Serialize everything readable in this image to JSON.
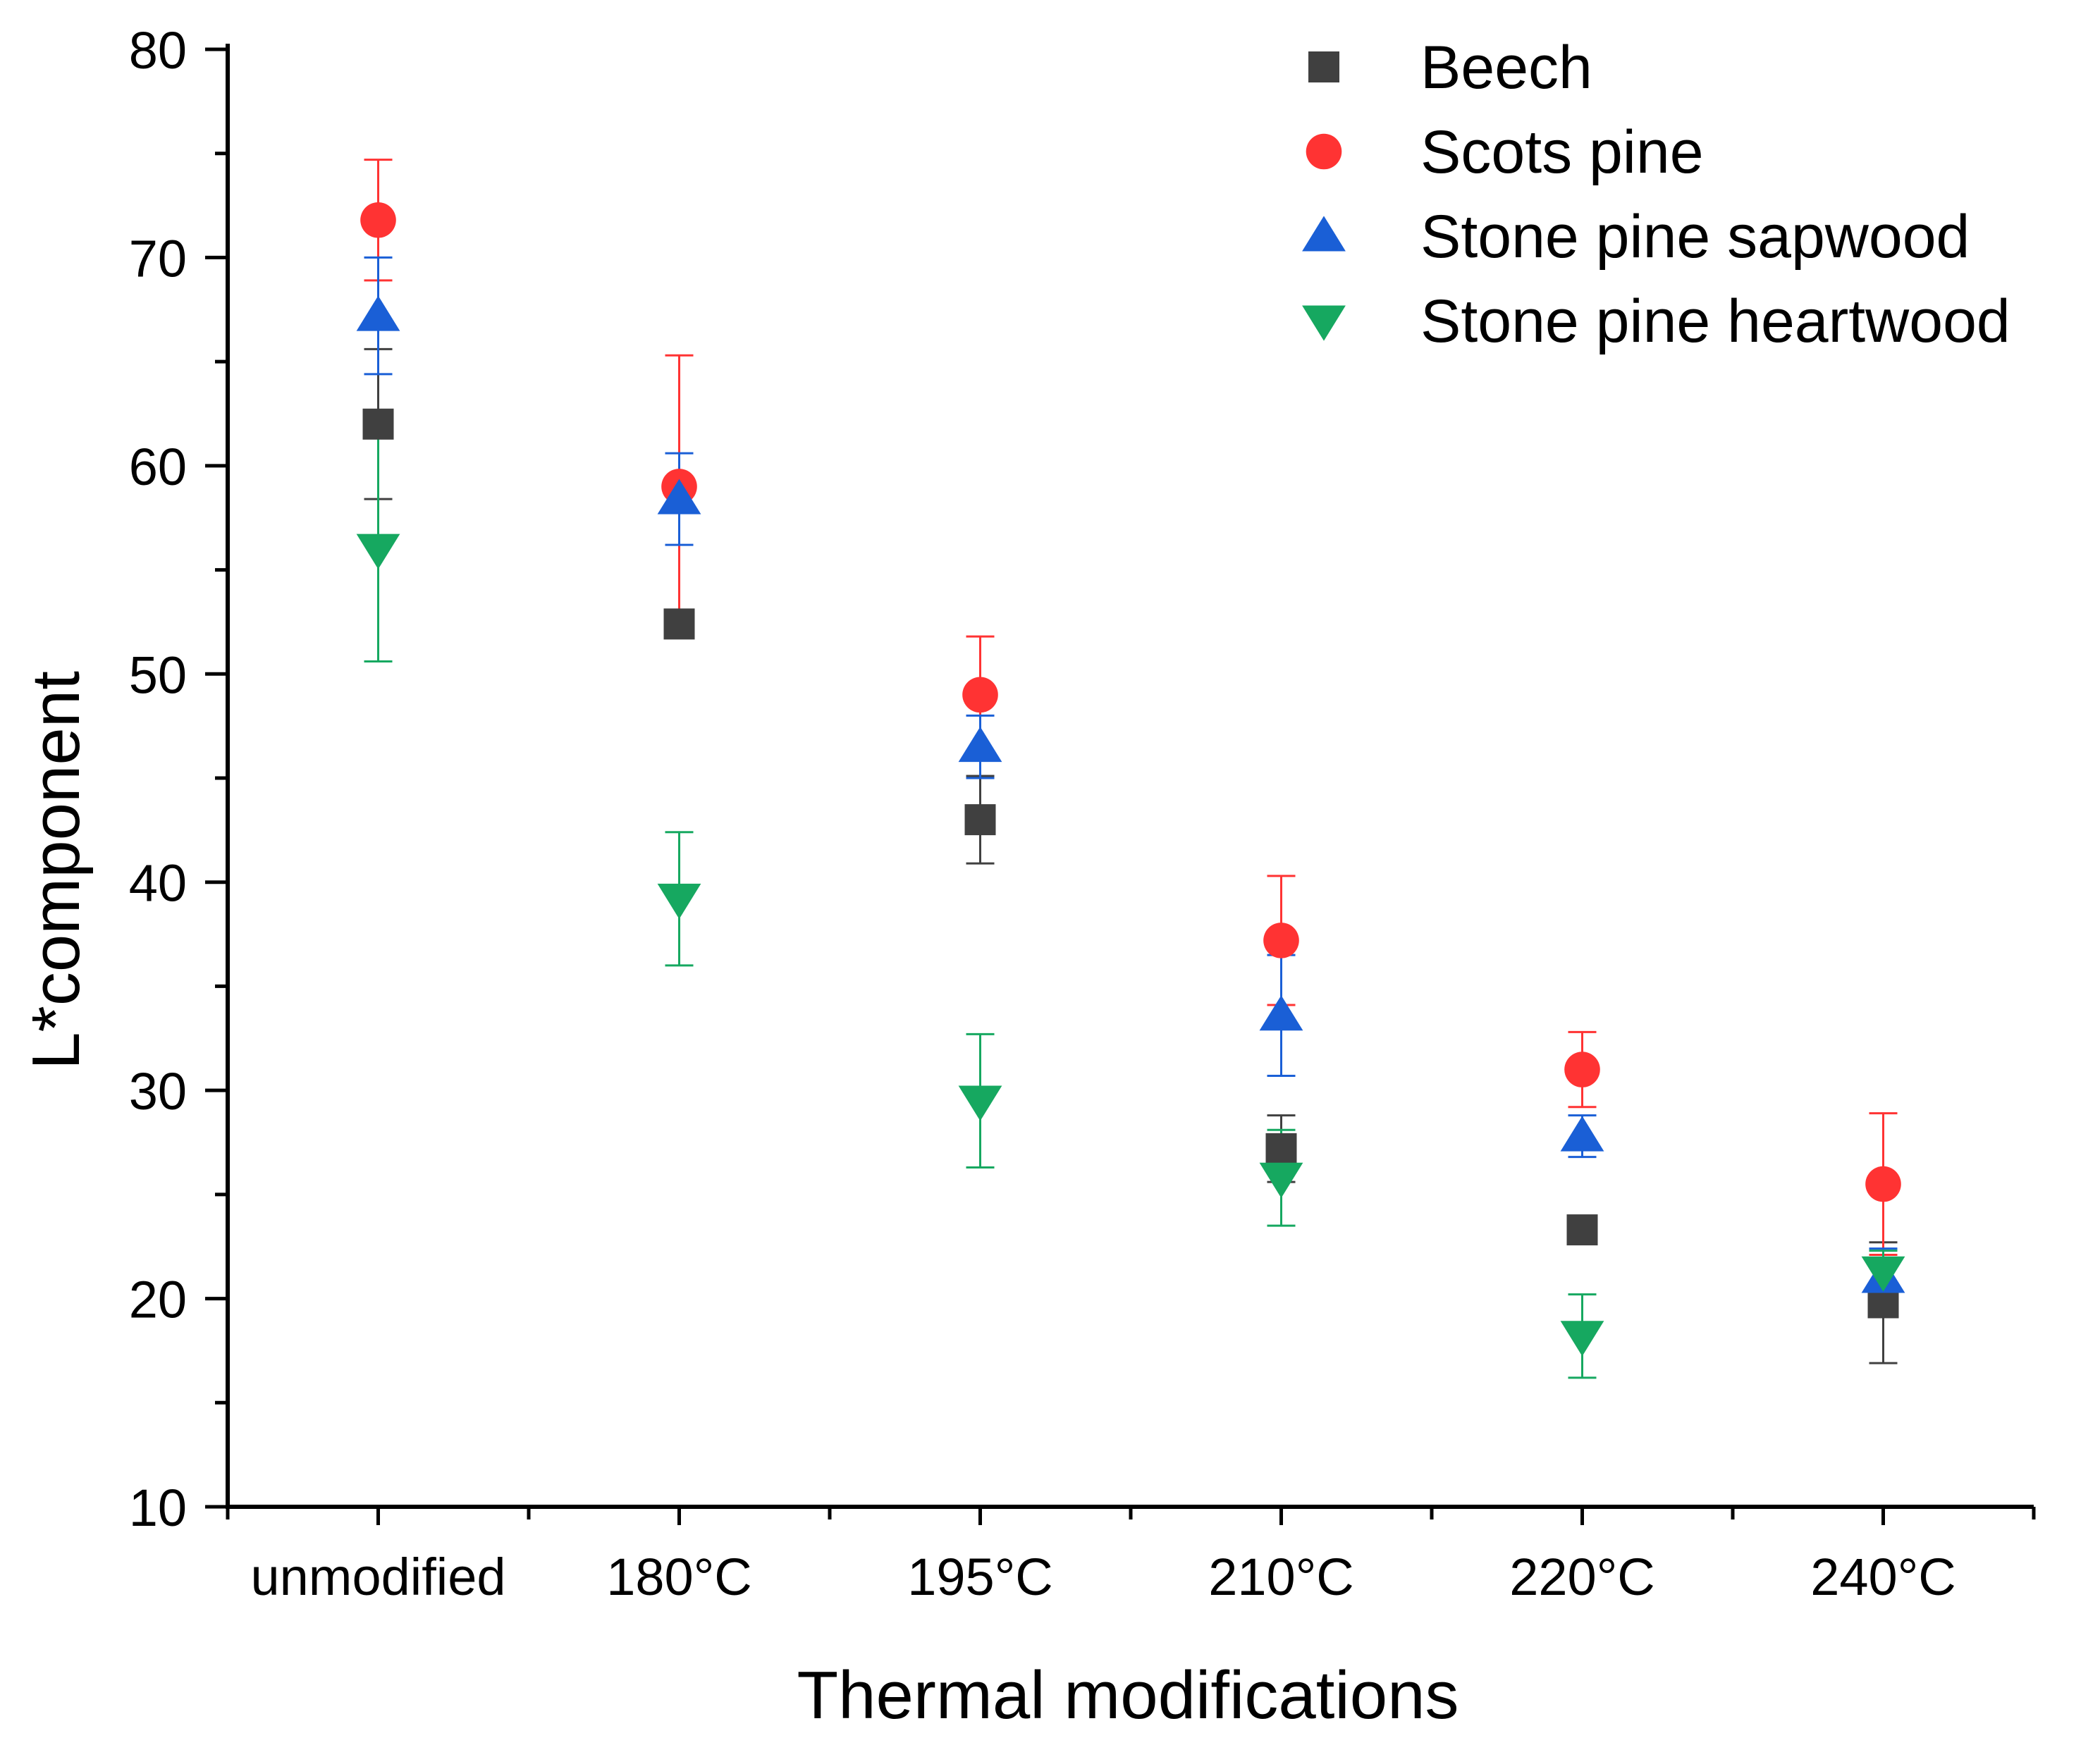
{
  "chart_data": {
    "type": "scatter",
    "title": "",
    "xlabel": "Thermal modifications",
    "ylabel": "L*component",
    "categories": [
      "unmodified",
      "180°C",
      "195°C",
      "210°C",
      "220°C",
      "240°C"
    ],
    "ylim": [
      10,
      80
    ],
    "yticks": [
      10,
      20,
      30,
      40,
      50,
      60,
      70,
      80
    ],
    "grid": false,
    "legend_position": "top-right",
    "series": [
      {
        "name": "Beech",
        "marker": "square",
        "color": "#404040",
        "values": [
          62.0,
          52.4,
          43.0,
          27.2,
          23.3,
          19.8
        ],
        "errors": [
          3.6,
          0.5,
          2.1,
          1.6,
          0.5,
          2.9
        ]
      },
      {
        "name": "Scots pine",
        "marker": "circle",
        "color": "#ff3333",
        "values": [
          71.8,
          59.0,
          49.0,
          37.2,
          31.0,
          25.5
        ],
        "errors": [
          2.9,
          6.3,
          2.8,
          3.1,
          1.8,
          3.4
        ]
      },
      {
        "name": "Stone pine sapwood",
        "marker": "triangle-up",
        "color": "#1a5fd6",
        "values": [
          67.2,
          58.4,
          46.5,
          33.6,
          27.8,
          21.0
        ],
        "errors": [
          2.8,
          2.2,
          1.5,
          2.9,
          1.0,
          1.4
        ]
      },
      {
        "name": "Stone pine heartwood",
        "marker": "triangle-down",
        "color": "#16a860",
        "values": [
          56.0,
          39.2,
          29.5,
          25.8,
          18.2,
          21.3
        ],
        "errors": [
          5.4,
          3.2,
          3.2,
          2.3,
          2.0,
          1.0
        ]
      }
    ]
  }
}
